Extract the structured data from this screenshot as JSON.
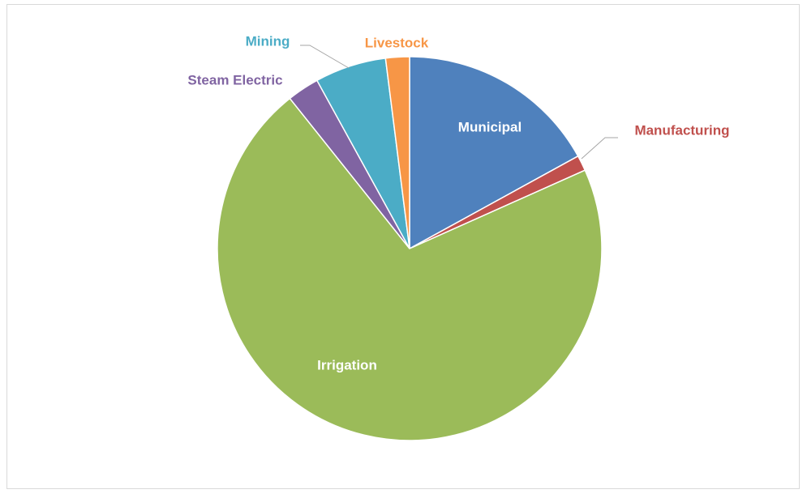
{
  "chart_data": {
    "type": "pie",
    "categories": [
      "Municipal",
      "Manufacturing",
      "Irrigation",
      "Steam Electric",
      "Mining",
      "Livestock"
    ],
    "values": [
      17,
      1.3,
      71,
      2.7,
      6,
      2
    ],
    "colors": [
      "#4f81bd",
      "#c0504d",
      "#9bbb59",
      "#8064a2",
      "#4bacc6",
      "#f79646"
    ]
  }
}
